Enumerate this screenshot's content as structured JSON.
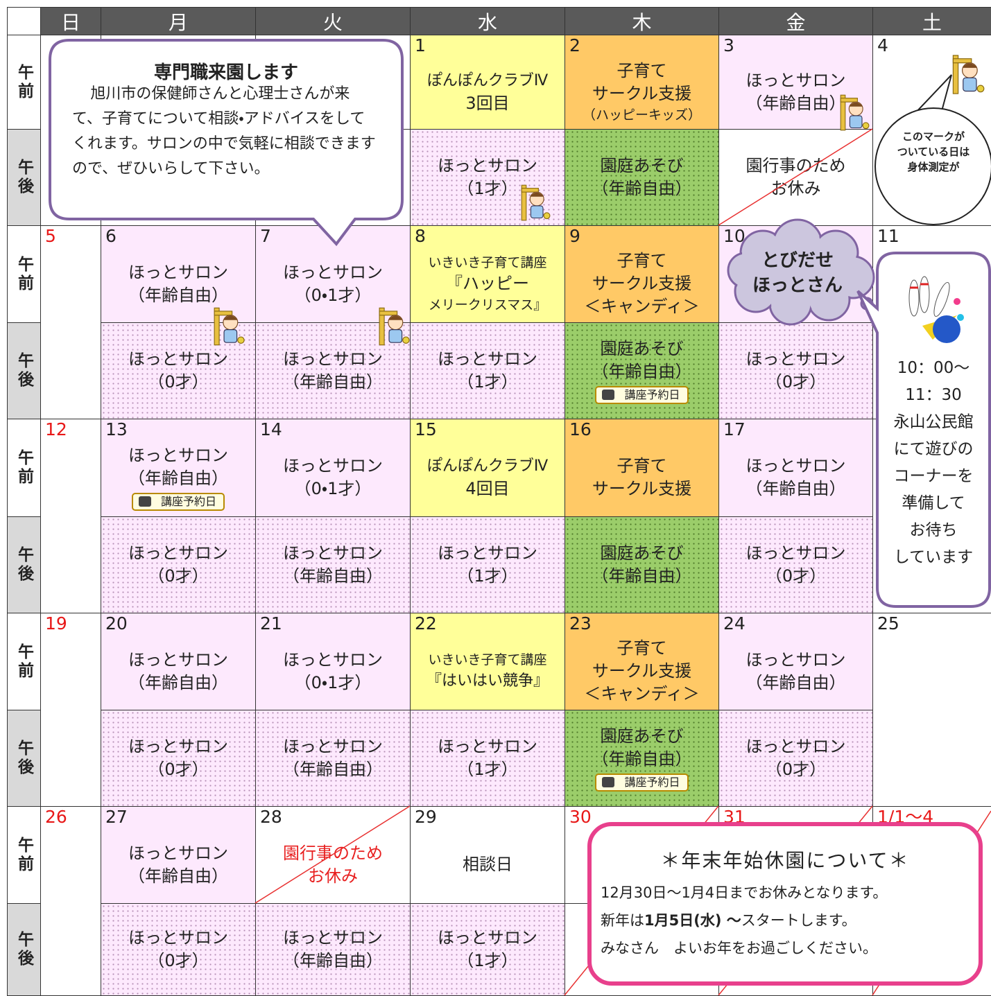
{
  "header": {
    "days": [
      "日",
      "月",
      "火",
      "水",
      "木",
      "金",
      "土"
    ]
  },
  "period_labels": [
    "午前",
    "午後"
  ],
  "weeks": [
    {
      "dates": [
        null,
        null,
        null,
        "1",
        "2",
        "3",
        "4"
      ],
      "am": [
        null,
        null,
        null,
        {
          "lines": [
            "ぽんぽんクラブⅣ",
            "3回目"
          ]
        },
        {
          "lines": [
            "子育て",
            "サークル支援",
            "（ハッピーキッズ）"
          ]
        },
        {
          "lines": [
            "ほっとサロン",
            "（年齢自由）"
          ]
        },
        null
      ],
      "pm": [
        null,
        null,
        null,
        {
          "lines": [
            "ほっとサロン",
            "（1才）"
          ]
        },
        {
          "lines": [
            "園庭あそび",
            "（年齢自由）"
          ]
        },
        {
          "lines": [
            "園行事のため",
            "お休み"
          ]
        },
        null
      ]
    },
    {
      "dates": [
        "5",
        "6",
        "7",
        "8",
        "9",
        "10",
        "11"
      ],
      "am": [
        null,
        {
          "lines": [
            "ほっとサロン",
            "（年齢自由）"
          ]
        },
        {
          "lines": [
            "ほっとサロン",
            "（0・1才）"
          ]
        },
        {
          "lines": [
            "いきいき子育て講座",
            "『ハッピー",
            "メリークリスマス』"
          ]
        },
        {
          "lines": [
            "子育て",
            "サークル支援",
            "＜キャンディ＞"
          ]
        },
        null,
        null
      ],
      "pm": [
        null,
        {
          "lines": [
            "ほっとサロン",
            "（0才）"
          ]
        },
        {
          "lines": [
            "ほっとサロン",
            "（年齢自由）"
          ]
        },
        {
          "lines": [
            "ほっとサロン",
            "（1才）"
          ]
        },
        {
          "lines": [
            "園庭あそび",
            "（年齢自由）"
          ],
          "badge": "講座予約日"
        },
        {
          "lines": [
            "ほっとサロン",
            "（0才）"
          ]
        },
        null
      ]
    },
    {
      "dates": [
        "12",
        "13",
        "14",
        "15",
        "16",
        "17",
        null
      ],
      "am": [
        null,
        {
          "lines": [
            "ほっとサロン",
            "（年齢自由）"
          ],
          "badge": "講座予約日"
        },
        {
          "lines": [
            "ほっとサロン",
            "（0・1才）"
          ]
        },
        {
          "lines": [
            "ぽんぽんクラブⅣ",
            "4回目"
          ]
        },
        {
          "lines": [
            "子育て",
            "サークル支援"
          ]
        },
        {
          "lines": [
            "ほっとサロン",
            "（年齢自由）"
          ]
        },
        null
      ],
      "pm": [
        null,
        {
          "lines": [
            "ほっとサロン",
            "（0才）"
          ]
        },
        {
          "lines": [
            "ほっとサロン",
            "（年齢自由）"
          ]
        },
        {
          "lines": [
            "ほっとサロン",
            "（1才）"
          ]
        },
        {
          "lines": [
            "園庭あそび",
            "（年齢自由）"
          ]
        },
        {
          "lines": [
            "ほっとサロン",
            "（0才）"
          ]
        },
        null
      ]
    },
    {
      "dates": [
        "19",
        "20",
        "21",
        "22",
        "23",
        "24",
        "25"
      ],
      "am": [
        null,
        {
          "lines": [
            "ほっとサロン",
            "（年齢自由）"
          ]
        },
        {
          "lines": [
            "ほっとサロン",
            "（0・1才）"
          ]
        },
        {
          "lines": [
            "いきいき子育て講座",
            "『はいはい競争』"
          ]
        },
        {
          "lines": [
            "子育て",
            "サークル支援",
            "＜キャンディ＞"
          ]
        },
        {
          "lines": [
            "ほっとサロン",
            "（年齢自由）"
          ]
        },
        null
      ],
      "pm": [
        null,
        {
          "lines": [
            "ほっとサロン",
            "（0才）"
          ]
        },
        {
          "lines": [
            "ほっとサロン",
            "（年齢自由）"
          ]
        },
        {
          "lines": [
            "ほっとサロン",
            "（1才）"
          ]
        },
        {
          "lines": [
            "園庭あそび",
            "（年齢自由）"
          ],
          "badge": "講座予約日"
        },
        {
          "lines": [
            "ほっとサロン",
            "（0才）"
          ]
        },
        null
      ]
    },
    {
      "dates": [
        "26",
        "27",
        "28",
        "29",
        "30",
        "31",
        "1/1～4"
      ],
      "am": [
        null,
        {
          "lines": [
            "ほっとサロン",
            "（年齢自由）"
          ]
        },
        {
          "lines": [
            "園行事のため",
            "お休み"
          ]
        },
        {
          "lines": [
            "相談日"
          ]
        },
        null,
        null,
        null
      ],
      "pm": [
        null,
        {
          "lines": [
            "ほっとサロン",
            "（0才）"
          ]
        },
        {
          "lines": [
            "ほっとサロン",
            "（年齢自由）"
          ]
        },
        {
          "lines": [
            "ほっとサロン",
            "（1才）"
          ]
        },
        null,
        null,
        null
      ]
    }
  ],
  "callouts": {
    "staff": {
      "title": "専門職来園します",
      "body": "旭川市の保健師さんと心理士さんが来て、子育てについて相談・アドバイスをしてくれます。サロンの中で気軽に相談できますので、ぜひいらして下さい。"
    },
    "measure": {
      "lines": [
        "このマークが",
        "ついている日は",
        "身体測定が"
      ]
    },
    "cloud": {
      "lines": [
        "とびだせ",
        "ほっとさん"
      ]
    },
    "bowling": {
      "lines": [
        "10：00～",
        "11：30",
        "永山公民館",
        "にて遊びの",
        "コーナーを",
        "準備して",
        "お待ち",
        "しています"
      ]
    },
    "notice": {
      "title": "＊年末年始休園について＊",
      "lines": [
        "12月30日～1月4日までお休みとなります。",
        [
          "新年は",
          "1月5日(水) ～",
          "スタートします。"
        ],
        "みなさん　よいお年をお過ごしください。"
      ]
    }
  }
}
